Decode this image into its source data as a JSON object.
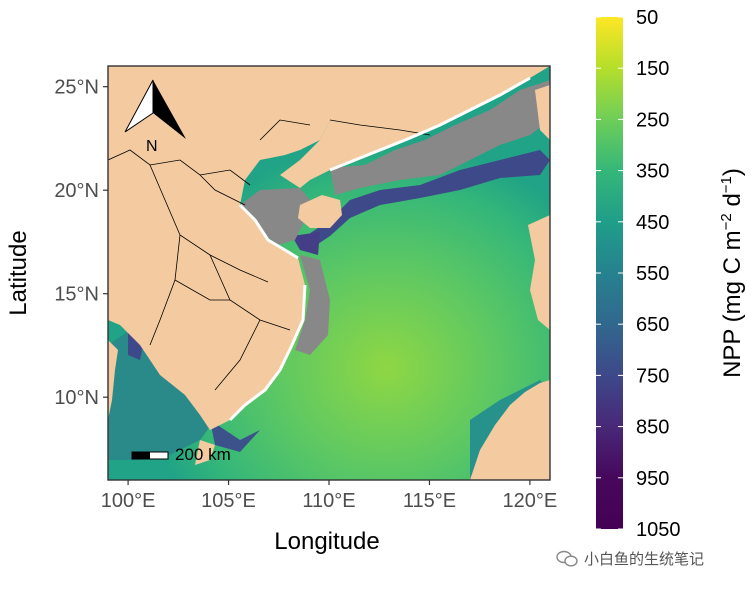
{
  "chart_data": {
    "type": "heatmap",
    "xlabel": "Longitude",
    "ylabel": "Latitude",
    "xlim": [
      99.0,
      121.0
    ],
    "ylim": [
      6.0,
      26.0
    ],
    "x_ticks": [
      {
        "value": 100,
        "label": "100°E"
      },
      {
        "value": 105,
        "label": "105°E"
      },
      {
        "value": 110,
        "label": "110°E"
      },
      {
        "value": 115,
        "label": "115°E"
      },
      {
        "value": 120,
        "label": "120°E"
      }
    ],
    "y_ticks": [
      {
        "value": 10,
        "label": "10°N"
      },
      {
        "value": 15,
        "label": "15°N"
      },
      {
        "value": 20,
        "label": "20°N"
      },
      {
        "value": 25,
        "label": "25°N"
      }
    ],
    "colorbar": {
      "title": "NPP (mg C m",
      "title_sup1": "−2",
      "title_mid": " d",
      "title_sup2": "−1",
      "title_end": ")",
      "range": [
        50,
        1050
      ],
      "reversed": true,
      "palette": "viridis",
      "labels": [
        "50",
        "150",
        "250",
        "350",
        "450",
        "550",
        "650",
        "750",
        "850",
        "950",
        "1050"
      ]
    },
    "land_color": "#F4CBA0",
    "no_data_color": "#888888",
    "scale_bar_label": "200 km",
    "north_label": "N"
  },
  "watermark": {
    "text": "小白鱼的生统笔记"
  }
}
